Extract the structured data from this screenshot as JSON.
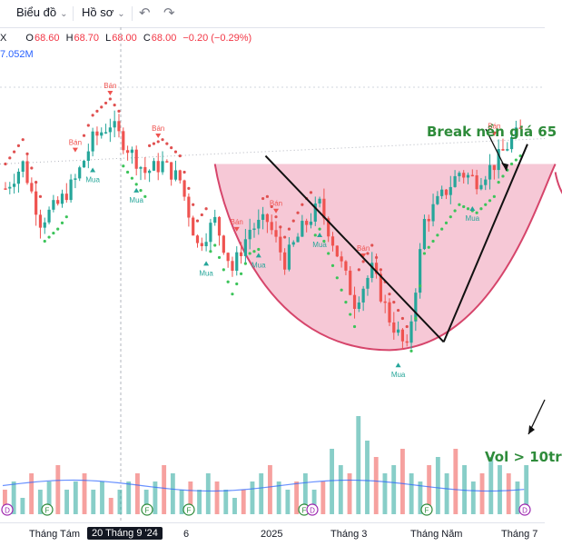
{
  "toolbar": {
    "chart_menu": "Biểu đồ",
    "profile_menu": "Hồ sơ"
  },
  "legend": {
    "symbol": "X",
    "open_label": "O",
    "open": "68.60",
    "high_label": "H",
    "high": "68.70",
    "low_label": "L",
    "low": "68.00",
    "close_label": "C",
    "close": "68.00",
    "change": "−0.20 (−0.29%)",
    "volume": "7.052M"
  },
  "annotations": {
    "breakout": "Break nền giá 65",
    "volume": "Vol > 10tr"
  },
  "signals": {
    "sell": "Bán",
    "buy": "Mua"
  },
  "colors": {
    "up": "#26a69a",
    "down": "#ef5350",
    "cup_fill": "#f3b6c8",
    "cup_edge": "#d6456b",
    "annotation": "#2e8b3a",
    "dots_green": "#3cc45a",
    "dots_red": "#e05050"
  },
  "chart_data": {
    "type": "candlestick",
    "x_ticks": [
      "Tháng Tám",
      "20 Tháng 9 '24",
      "6",
      "2025",
      "Tháng 3",
      "Tháng Năm",
      "Tháng 7"
    ],
    "highlighted_tick": "20 Tháng 9 '24",
    "resistance": 65,
    "price_points": [
      [
        0,
        62
      ],
      [
        4,
        65
      ],
      [
        8,
        58
      ],
      [
        12,
        60
      ],
      [
        16,
        63
      ],
      [
        20,
        68
      ],
      [
        24,
        70
      ],
      [
        28,
        67
      ],
      [
        32,
        64
      ],
      [
        36,
        65
      ],
      [
        40,
        63
      ],
      [
        44,
        55
      ],
      [
        48,
        58
      ],
      [
        52,
        52
      ],
      [
        56,
        57
      ],
      [
        60,
        58
      ],
      [
        64,
        53
      ],
      [
        68,
        57
      ],
      [
        72,
        60
      ],
      [
        76,
        54
      ],
      [
        80,
        48
      ],
      [
        84,
        52
      ],
      [
        88,
        46
      ],
      [
        92,
        42
      ],
      [
        96,
        58
      ],
      [
        100,
        61
      ],
      [
        104,
        64
      ],
      [
        108,
        63
      ],
      [
        112,
        65
      ],
      [
        116,
        68
      ],
      [
        118,
        69
      ]
    ],
    "cup": {
      "left_rim": 65,
      "bottom": 43,
      "right_rim": 65
    },
    "trendline_down": [
      [
        70,
        66
      ],
      [
        105,
        44
      ]
    ],
    "trendline_up": [
      [
        105,
        44
      ],
      [
        140,
        68
      ]
    ],
    "volume_levels": [
      3,
      4,
      2,
      5,
      3,
      4,
      6,
      3,
      4,
      5,
      3,
      4,
      2,
      3,
      4,
      5,
      3,
      4,
      6,
      5,
      3,
      4,
      3,
      5,
      4,
      3,
      2,
      3,
      4,
      5,
      6,
      4,
      3,
      4,
      5,
      3,
      4,
      8,
      6,
      5,
      12,
      9,
      7,
      5,
      6,
      8,
      5,
      4,
      6,
      7,
      5,
      8,
      6,
      4,
      5,
      7,
      6,
      5,
      4,
      6
    ],
    "volume_annotation_level": 10
  }
}
